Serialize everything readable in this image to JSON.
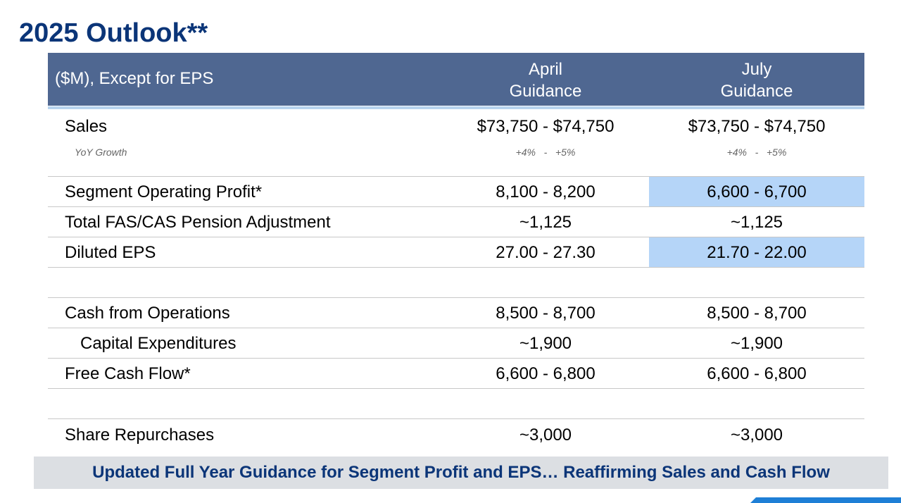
{
  "header": {
    "title": "2025 Outlook**"
  },
  "table": {
    "columns": [
      "($M), Except for EPS",
      [
        "April",
        "Guidance"
      ],
      [
        "July",
        "Guidance"
      ]
    ],
    "rows": [
      [
        "Sales",
        "$73,750 - $74,750",
        "$73,750 - $74,750"
      ],
      [
        "YoY Growth",
        "+4%   -   +5%",
        "+4%   -   +5%"
      ],
      [
        "Segment Operating Profit*",
        "8,100 - 8,200",
        "6,600 - 6,700"
      ],
      [
        "Total FAS/CAS Pension Adjustment",
        "~1,125",
        "~1,125"
      ],
      [
        "Diluted EPS",
        "27.00 - 27.30",
        "21.70 - 22.00"
      ],
      [
        "Cash from Operations",
        "8,500 - 8,700",
        "8,500 - 8,700"
      ],
      [
        "Capital Expenditures",
        "~1,900",
        "~1,900"
      ],
      [
        "Free Cash Flow*",
        "6,600 - 6,800",
        "6,600 - 6,800"
      ],
      [
        "Share Repurchases",
        "~3,000",
        "~3,000"
      ]
    ]
  },
  "footer": {
    "text": "Updated Full Year Guidance for Segment Profit and EPS… Reaffirming Sales and Cash Flow"
  }
}
